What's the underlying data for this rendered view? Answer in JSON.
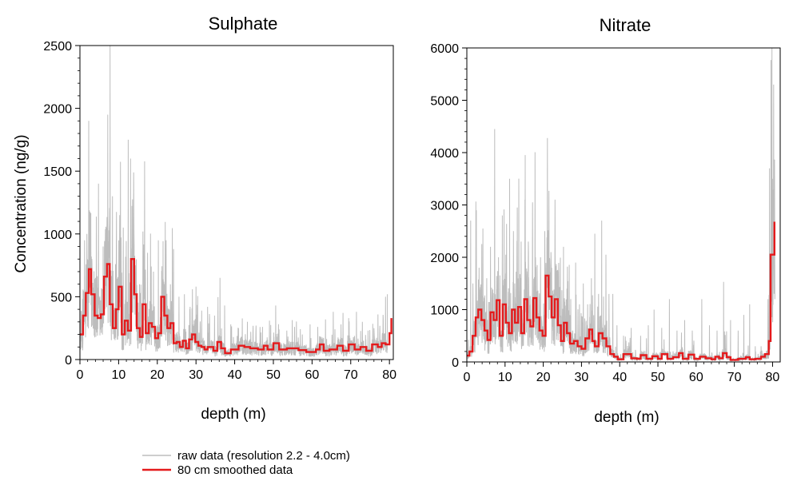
{
  "legend": {
    "raw_label": "raw data (resolution 2.2 - 4.0cm)",
    "smooth_label": "80 cm smoothed data",
    "raw_color": "#bdbdbd",
    "smooth_color": "#e41a1c"
  },
  "chart_data": [
    {
      "type": "line",
      "title": "Sulphate",
      "xlabel": "depth (m)",
      "ylabel": "Concentration (ng/g)",
      "xlim": [
        0,
        81
      ],
      "ylim": [
        0,
        2500
      ],
      "xticks": [
        "0",
        "10",
        "20",
        "30",
        "40",
        "50",
        "60",
        "70",
        "80"
      ],
      "yticks": [
        "0",
        "500",
        "1000",
        "1500",
        "2000",
        "2500"
      ],
      "x_tick_values": [
        0,
        10,
        20,
        30,
        40,
        50,
        60,
        70,
        80
      ],
      "y_tick_values": [
        0,
        500,
        1000,
        1500,
        2000,
        2500
      ],
      "raw_peaks": [
        [
          1.2,
          950
        ],
        [
          1.8,
          1000
        ],
        [
          2.3,
          1900
        ],
        [
          3.1,
          800
        ],
        [
          4.0,
          650
        ],
        [
          4.8,
          1400
        ],
        [
          6.0,
          900
        ],
        [
          7.2,
          1950
        ],
        [
          7.8,
          2500
        ],
        [
          8.4,
          1300
        ],
        [
          9.4,
          900
        ],
        [
          10.3,
          1150
        ],
        [
          11.2,
          1050
        ],
        [
          12.5,
          1750
        ],
        [
          13.1,
          1600
        ],
        [
          14.0,
          900
        ],
        [
          15.4,
          600
        ],
        [
          16.3,
          1020
        ],
        [
          17.5,
          850
        ],
        [
          19.0,
          700
        ],
        [
          20.3,
          950
        ],
        [
          21.7,
          620
        ],
        [
          22.3,
          950
        ],
        [
          23.4,
          600
        ],
        [
          24.2,
          880
        ],
        [
          25.6,
          500
        ],
        [
          27.0,
          520
        ],
        [
          28.5,
          420
        ],
        [
          30.0,
          580
        ],
        [
          31.5,
          390
        ],
        [
          33.0,
          420
        ],
        [
          34.8,
          350
        ],
        [
          36.2,
          650
        ],
        [
          37.4,
          430
        ],
        [
          39.0,
          280
        ],
        [
          41.0,
          250
        ],
        [
          43.3,
          300
        ],
        [
          45.5,
          220
        ],
        [
          47.2,
          260
        ],
        [
          49.0,
          310
        ],
        [
          51.5,
          240
        ],
        [
          53.5,
          230
        ],
        [
          55.5,
          260
        ],
        [
          57.5,
          200
        ],
        [
          59.5,
          280
        ],
        [
          61.5,
          260
        ],
        [
          63.5,
          320
        ],
        [
          65.5,
          380
        ],
        [
          67.5,
          280
        ],
        [
          69.5,
          330
        ],
        [
          71.5,
          380
        ],
        [
          73.0,
          300
        ],
        [
          74.5,
          230
        ],
        [
          76.0,
          250
        ],
        [
          77.5,
          230
        ],
        [
          79.0,
          500
        ],
        [
          79.5,
          520
        ]
      ],
      "smoothed": [
        [
          0,
          200
        ],
        [
          0.8,
          350
        ],
        [
          1.5,
          530
        ],
        [
          2.3,
          720
        ],
        [
          2.9,
          520
        ],
        [
          3.8,
          350
        ],
        [
          4.6,
          330
        ],
        [
          5.4,
          360
        ],
        [
          6.2,
          660
        ],
        [
          7.0,
          760
        ],
        [
          7.7,
          440
        ],
        [
          8.5,
          250
        ],
        [
          9.3,
          400
        ],
        [
          10.0,
          580
        ],
        [
          10.8,
          200
        ],
        [
          11.6,
          310
        ],
        [
          12.4,
          230
        ],
        [
          13.2,
          800
        ],
        [
          14.0,
          520
        ],
        [
          14.7,
          250
        ],
        [
          15.5,
          180
        ],
        [
          16.2,
          440
        ],
        [
          17.0,
          210
        ],
        [
          17.8,
          290
        ],
        [
          18.6,
          260
        ],
        [
          19.4,
          170
        ],
        [
          20.2,
          210
        ],
        [
          21.0,
          500
        ],
        [
          21.8,
          350
        ],
        [
          22.6,
          250
        ],
        [
          23.4,
          290
        ],
        [
          24.2,
          130
        ],
        [
          25.0,
          140
        ],
        [
          25.8,
          100
        ],
        [
          26.6,
          150
        ],
        [
          27.4,
          90
        ],
        [
          28.2,
          160
        ],
        [
          29.0,
          200
        ],
        [
          29.8,
          140
        ],
        [
          30.6,
          110
        ],
        [
          31.4,
          100
        ],
        [
          32.2,
          80
        ],
        [
          33.0,
          100
        ],
        [
          34.5,
          70
        ],
        [
          35.5,
          140
        ],
        [
          36.5,
          90
        ],
        [
          37.5,
          50
        ],
        [
          39.0,
          80
        ],
        [
          41.0,
          110
        ],
        [
          42.5,
          100
        ],
        [
          44.0,
          90
        ],
        [
          46.0,
          80
        ],
        [
          47.5,
          110
        ],
        [
          48.5,
          80
        ],
        [
          50.0,
          130
        ],
        [
          51.5,
          80
        ],
        [
          53.5,
          90
        ],
        [
          56.5,
          75
        ],
        [
          58.5,
          60
        ],
        [
          61.0,
          80
        ],
        [
          62.0,
          120
        ],
        [
          63.0,
          70
        ],
        [
          64.5,
          80
        ],
        [
          66.5,
          110
        ],
        [
          68.0,
          70
        ],
        [
          69.5,
          120
        ],
        [
          71.0,
          80
        ],
        [
          72.5,
          100
        ],
        [
          74.0,
          70
        ],
        [
          75.5,
          120
        ],
        [
          77.0,
          100
        ],
        [
          78.0,
          130
        ],
        [
          79.0,
          120
        ],
        [
          80.0,
          210
        ],
        [
          80.5,
          330
        ]
      ]
    },
    {
      "type": "line",
      "title": "Nitrate",
      "xlabel": "depth (m)",
      "ylabel": "",
      "xlim": [
        0,
        82
      ],
      "ylim": [
        0,
        6000
      ],
      "xticks": [
        "0",
        "10",
        "20",
        "30",
        "40",
        "50",
        "60",
        "70",
        "80"
      ],
      "yticks": [
        "0",
        "1000",
        "2000",
        "3000",
        "4000",
        "5000",
        "6000"
      ],
      "x_tick_values": [
        0,
        10,
        20,
        30,
        40,
        50,
        60,
        70,
        80
      ],
      "y_tick_values": [
        0,
        1000,
        2000,
        3000,
        4000,
        5000,
        6000
      ],
      "raw_peaks": [
        [
          1.0,
          2700
        ],
        [
          1.6,
          1500
        ],
        [
          2.5,
          2900
        ],
        [
          3.2,
          1800
        ],
        [
          4.2,
          2550
        ],
        [
          5.2,
          1600
        ],
        [
          6.2,
          2200
        ],
        [
          7.3,
          4450
        ],
        [
          8.3,
          2000
        ],
        [
          9.3,
          2800
        ],
        [
          10.2,
          2050
        ],
        [
          11.2,
          3500
        ],
        [
          12.2,
          2500
        ],
        [
          13.2,
          2950
        ],
        [
          14.2,
          2300
        ],
        [
          15.2,
          3100
        ],
        [
          16.1,
          2300
        ],
        [
          17.2,
          3050
        ],
        [
          18.4,
          1850
        ],
        [
          19.3,
          2000
        ],
        [
          20.4,
          2500
        ],
        [
          21.1,
          4280
        ],
        [
          22.0,
          2100
        ],
        [
          23.1,
          3100
        ],
        [
          24.1,
          1700
        ],
        [
          25.3,
          2200
        ],
        [
          26.2,
          1400
        ],
        [
          27.2,
          1200
        ],
        [
          28.5,
          1900
        ],
        [
          29.5,
          1100
        ],
        [
          30.5,
          1500
        ],
        [
          31.6,
          1100
        ],
        [
          32.6,
          1600
        ],
        [
          33.5,
          2450
        ],
        [
          34.5,
          1300
        ],
        [
          35.3,
          2700
        ],
        [
          36.4,
          2050
        ],
        [
          37.2,
          1300
        ],
        [
          38.2,
          1300
        ],
        [
          39.3,
          700
        ],
        [
          41.0,
          500
        ],
        [
          43.0,
          650
        ],
        [
          45.5,
          500
        ],
        [
          47.5,
          700
        ],
        [
          49.0,
          1000
        ],
        [
          51.0,
          650
        ],
        [
          53.0,
          1200
        ],
        [
          55.0,
          600
        ],
        [
          57.0,
          800
        ],
        [
          59.0,
          600
        ],
        [
          61.5,
          1200
        ],
        [
          63.5,
          700
        ],
        [
          65.5,
          600
        ],
        [
          67.2,
          1530
        ],
        [
          69.0,
          800
        ],
        [
          71.0,
          600
        ],
        [
          72.5,
          900
        ],
        [
          74.0,
          1100
        ],
        [
          75.5,
          300
        ],
        [
          77.0,
          300
        ],
        [
          78.8,
          1200
        ],
        [
          79.2,
          3700
        ],
        [
          79.6,
          5770
        ],
        [
          80.0,
          3500
        ],
        [
          80.3,
          5300
        ],
        [
          80.6,
          1200
        ]
      ],
      "smoothed": [
        [
          0,
          120
        ],
        [
          0.7,
          200
        ],
        [
          1.5,
          500
        ],
        [
          2.3,
          850
        ],
        [
          3.0,
          1000
        ],
        [
          3.8,
          800
        ],
        [
          4.6,
          600
        ],
        [
          5.4,
          420
        ],
        [
          6.2,
          950
        ],
        [
          7.0,
          800
        ],
        [
          7.8,
          1180
        ],
        [
          8.6,
          500
        ],
        [
          9.4,
          1100
        ],
        [
          10.2,
          750
        ],
        [
          11.0,
          550
        ],
        [
          11.8,
          1000
        ],
        [
          12.6,
          750
        ],
        [
          13.4,
          1050
        ],
        [
          14.2,
          550
        ],
        [
          15.0,
          1200
        ],
        [
          15.8,
          800
        ],
        [
          16.6,
          680
        ],
        [
          17.4,
          1220
        ],
        [
          18.2,
          850
        ],
        [
          19.0,
          600
        ],
        [
          19.8,
          500
        ],
        [
          20.6,
          1650
        ],
        [
          21.4,
          1250
        ],
        [
          22.2,
          850
        ],
        [
          23.0,
          1200
        ],
        [
          23.8,
          700
        ],
        [
          24.6,
          400
        ],
        [
          25.4,
          750
        ],
        [
          26.2,
          550
        ],
        [
          27.0,
          350
        ],
        [
          28.0,
          400
        ],
        [
          29.0,
          300
        ],
        [
          30.0,
          250
        ],
        [
          31.0,
          450
        ],
        [
          32.0,
          620
        ],
        [
          32.8,
          400
        ],
        [
          33.5,
          300
        ],
        [
          34.5,
          550
        ],
        [
          35.5,
          450
        ],
        [
          36.5,
          300
        ],
        [
          37.5,
          150
        ],
        [
          38.5,
          100
        ],
        [
          39.5,
          50
        ],
        [
          41.0,
          150
        ],
        [
          43.0,
          70
        ],
        [
          44.5,
          60
        ],
        [
          45.5,
          130
        ],
        [
          47.0,
          60
        ],
        [
          48.5,
          110
        ],
        [
          50.0,
          60
        ],
        [
          51.0,
          150
        ],
        [
          52.5,
          60
        ],
        [
          54.0,
          90
        ],
        [
          55.5,
          170
        ],
        [
          56.5,
          60
        ],
        [
          58.0,
          140
        ],
        [
          59.5,
          60
        ],
        [
          61.0,
          100
        ],
        [
          62.5,
          70
        ],
        [
          64.0,
          50
        ],
        [
          65.0,
          100
        ],
        [
          66.0,
          70
        ],
        [
          67.0,
          170
        ],
        [
          68.0,
          90
        ],
        [
          69.0,
          40
        ],
        [
          71.0,
          60
        ],
        [
          73.0,
          90
        ],
        [
          74.0,
          50
        ],
        [
          75.5,
          60
        ],
        [
          77.0,
          100
        ],
        [
          78.0,
          150
        ],
        [
          79.0,
          400
        ],
        [
          79.5,
          2050
        ],
        [
          80.5,
          2680
        ]
      ]
    }
  ]
}
